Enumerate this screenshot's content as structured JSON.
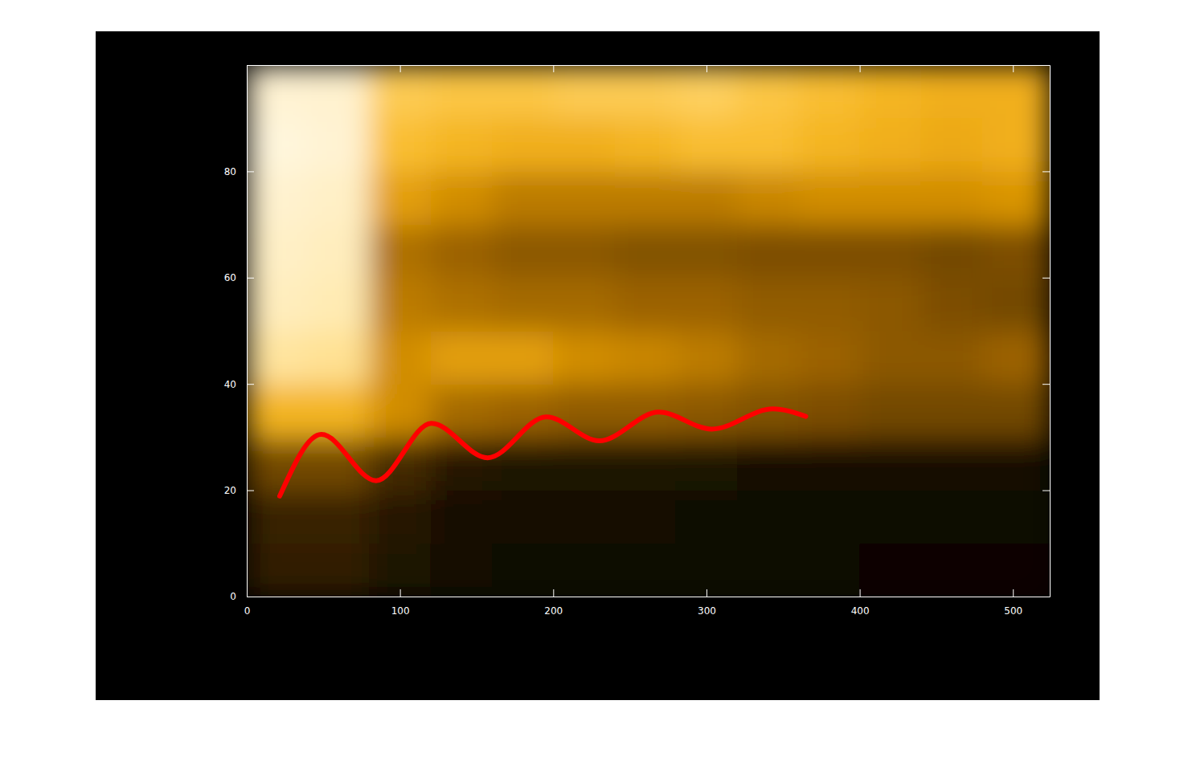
{
  "chart_data": {
    "type": "line",
    "xlim": [
      0,
      524
    ],
    "ylim": [
      0,
      100
    ],
    "xticks": [
      0,
      100,
      200,
      300,
      400,
      500
    ],
    "yticks": [
      0,
      20,
      40,
      60,
      80
    ],
    "x": [
      21.5,
      48.7,
      84.4,
      120.5,
      157.2,
      195.5,
      230.1,
      268.9,
      303.5,
      343.3,
      364.8
    ],
    "series": [
      {
        "color": "#ff0000",
        "values": [
          18.9,
          30.5,
          21.8,
          32.6,
          26.1,
          33.8,
          29.3,
          34.7,
          31.5,
          35.3,
          33.9
        ]
      }
    ],
    "image": {
      "x": [
        0,
        40,
        80,
        120,
        160,
        200,
        240,
        280,
        320,
        360,
        400,
        440,
        480,
        520,
        524
      ],
      "y": [
        0,
        10,
        20,
        30,
        40,
        50,
        60,
        70,
        80,
        90,
        100
      ],
      "zlim": [
        0,
        1
      ],
      "values": [
        [
          0.15,
          0.15,
          0.1,
          0.06,
          0.05,
          0.05,
          0.05,
          0.04,
          0.04,
          0.04,
          0.03,
          0.03,
          0.03,
          0.03
        ],
        [
          0.17,
          0.17,
          0.12,
          0.07,
          0.06,
          0.06,
          0.06,
          0.05,
          0.05,
          0.05,
          0.04,
          0.04,
          0.04,
          0.04
        ],
        [
          0.3,
          0.3,
          0.2,
          0.12,
          0.1,
          0.1,
          0.1,
          0.09,
          0.08,
          0.08,
          0.08,
          0.08,
          0.08,
          0.08
        ],
        [
          0.62,
          0.62,
          0.5,
          0.4,
          0.38,
          0.36,
          0.36,
          0.35,
          0.33,
          0.32,
          0.3,
          0.3,
          0.3,
          0.3
        ],
        [
          0.82,
          0.8,
          0.5,
          0.55,
          0.55,
          0.5,
          0.48,
          0.45,
          0.4,
          0.38,
          0.35,
          0.35,
          0.38,
          0.38
        ],
        [
          0.88,
          0.86,
          0.45,
          0.42,
          0.4,
          0.4,
          0.38,
          0.38,
          0.36,
          0.36,
          0.35,
          0.32,
          0.3,
          0.3
        ],
        [
          0.9,
          0.88,
          0.42,
          0.38,
          0.35,
          0.35,
          0.33,
          0.33,
          0.32,
          0.32,
          0.32,
          0.3,
          0.32,
          0.32
        ],
        [
          0.92,
          0.9,
          0.55,
          0.5,
          0.45,
          0.45,
          0.45,
          0.45,
          0.48,
          0.5,
          0.5,
          0.5,
          0.52,
          0.52
        ],
        [
          0.95,
          0.93,
          0.65,
          0.62,
          0.6,
          0.6,
          0.62,
          0.65,
          0.65,
          0.62,
          0.6,
          0.58,
          0.6,
          0.6
        ],
        [
          0.93,
          0.92,
          0.7,
          0.68,
          0.68,
          0.7,
          0.7,
          0.72,
          0.68,
          0.65,
          0.62,
          0.6,
          0.6,
          0.6
        ]
      ]
    }
  }
}
